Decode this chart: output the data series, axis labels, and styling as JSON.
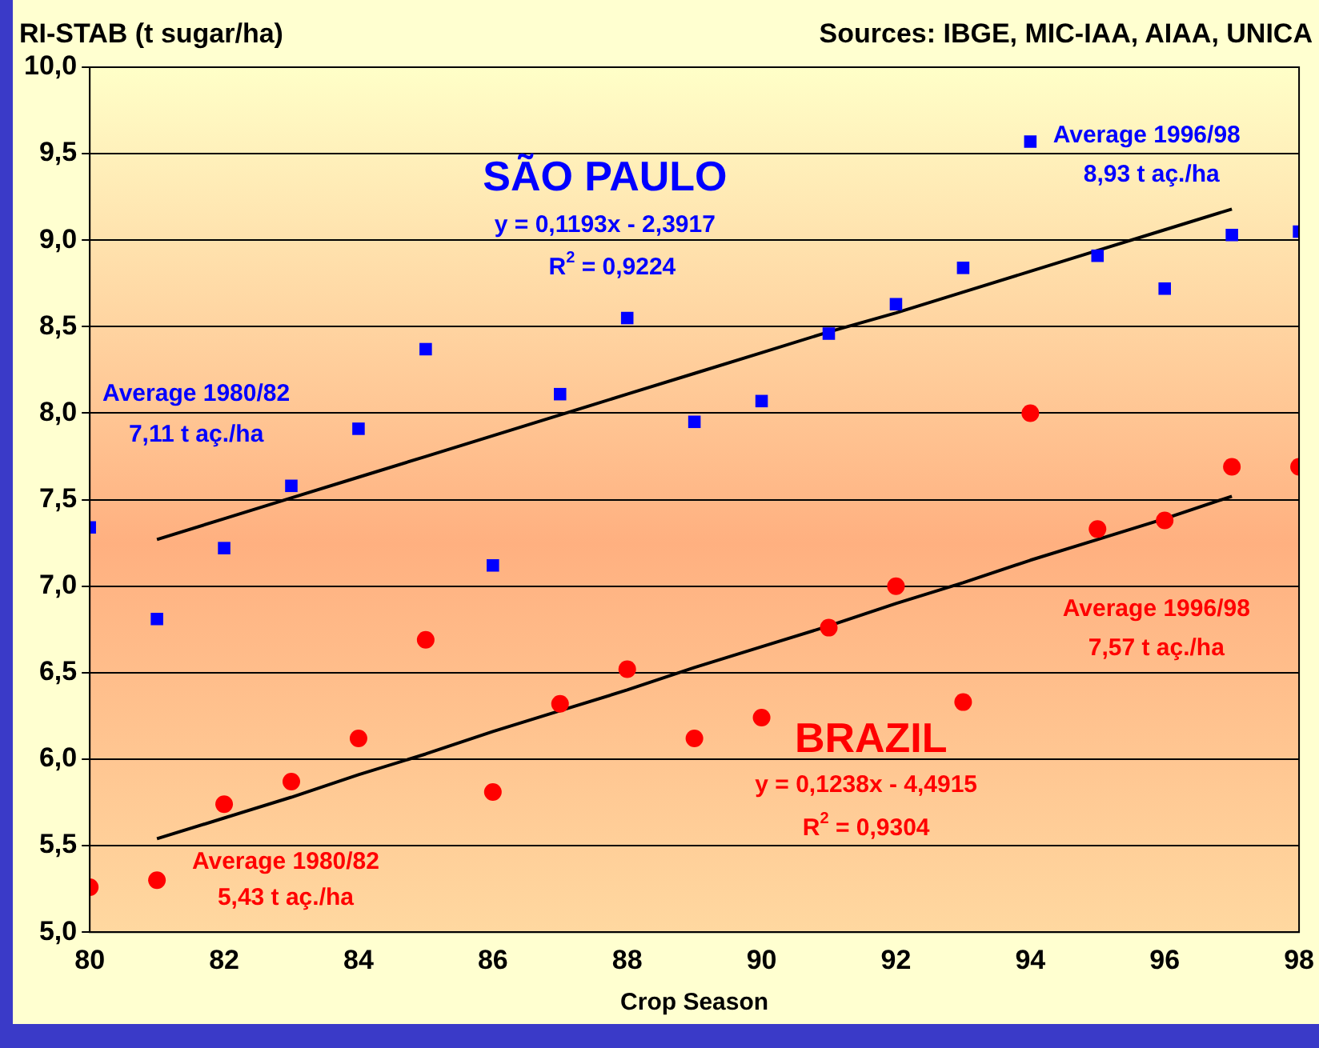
{
  "chart_data": {
    "type": "scatter",
    "ylabel": "RI-STAB (t sugar/ha)",
    "xlabel": "Crop Season",
    "x": [
      80,
      81,
      82,
      83,
      84,
      85,
      86,
      87,
      88,
      89,
      90,
      91,
      92,
      93,
      94,
      95,
      96,
      97,
      98
    ],
    "series": [
      {
        "type": "scatter",
        "name": "SÃO PAULO",
        "marker": "square",
        "color": "#0000ff",
        "values": [
          7.34,
          6.81,
          7.22,
          7.58,
          7.91,
          8.37,
          7.12,
          8.11,
          8.55,
          7.95,
          8.07,
          8.46,
          8.63,
          8.84,
          9.57,
          8.91,
          8.72,
          9.03,
          9.05
        ]
      },
      {
        "type": "scatter",
        "name": "BRAZIL",
        "marker": "circle",
        "color": "#ff0000",
        "values": [
          5.26,
          5.3,
          5.74,
          5.87,
          6.12,
          6.69,
          5.81,
          6.32,
          6.52,
          6.12,
          6.24,
          6.76,
          7.0,
          6.33,
          8.0,
          7.33,
          7.38,
          7.69,
          7.69
        ]
      },
      {
        "type": "line",
        "marker": "none",
        "color": "#000000",
        "values": [
          null,
          7.27,
          7.39,
          7.51,
          7.63,
          7.75,
          7.87,
          7.99,
          8.11,
          8.23,
          8.35,
          8.47,
          8.58,
          8.7,
          8.82,
          8.94,
          9.06,
          9.18,
          null
        ]
      },
      {
        "type": "line",
        "marker": "none",
        "color": "#000000",
        "values": [
          null,
          5.54,
          5.66,
          5.78,
          5.91,
          6.03,
          6.16,
          6.28,
          6.4,
          6.53,
          6.65,
          6.77,
          6.9,
          7.02,
          7.15,
          7.27,
          7.39,
          7.52,
          null
        ]
      }
    ],
    "xlim": [
      80,
      98
    ],
    "xticks": [
      80,
      82,
      84,
      86,
      88,
      90,
      92,
      94,
      96,
      98
    ],
    "ylim": [
      5,
      10
    ],
    "yticks": [
      {
        "value": 5,
        "label": "5,0"
      },
      {
        "value": 5.5,
        "label": "5,5"
      },
      {
        "value": 6,
        "label": "6,0"
      },
      {
        "value": 6.5,
        "label": "6,5"
      },
      {
        "value": 7,
        "label": "7,0"
      },
      {
        "value": 7.5,
        "label": "7,5"
      },
      {
        "value": 8,
        "label": "8,0"
      },
      {
        "value": 8.5,
        "label": "8,5"
      },
      {
        "value": 9,
        "label": "9,0"
      },
      {
        "value": 9.5,
        "label": "9,5"
      },
      {
        "value": 10,
        "label": "10,0"
      }
    ],
    "grid": "y",
    "legend": false,
    "annotations": [
      "Sources: IBGE, MIC-IAA, AIAA, UNICA",
      "y = 0,1193x - 2,3917",
      "R$^{2}$ = 0,9224",
      "Average 1996/98",
      "8,93 t aç./ha",
      "Average 1980/82",
      "7,11 t aç./ha",
      "y = 0,1238x - 4,4915",
      "R$^{2}$ = 0,9304",
      "Average 1996/98",
      "7,57 t aç./ha",
      "Average 1980/82",
      "5,43 t aç./ha"
    ]
  }
}
